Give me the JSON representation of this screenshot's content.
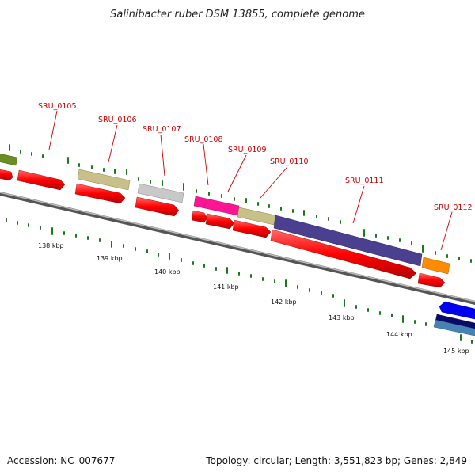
{
  "title": "Salinibacter ruber DSM 13855, complete genome",
  "footer": {
    "accession": "Accession: NC_007677",
    "topology": "Topology: circular; Length: 3,551,823 bp; Genes: 2,849"
  },
  "colors": {
    "cds": "#ff0000",
    "backbone": "#888888",
    "gc_tick": "#1a7a1a",
    "label": "#cc0000"
  },
  "kbp_labels": [
    "138 kbp",
    "139 kbp",
    "140 kbp",
    "141 kbp",
    "142 kbp",
    "143 kbp",
    "144 kbp",
    "145 kbp"
  ],
  "genes": [
    {
      "name": "SRU_0105",
      "color": "#c8c088"
    },
    {
      "name": "SRU_0106",
      "color": "#c8c088"
    },
    {
      "name": "SRU_0107",
      "color": "#c0c0c0"
    },
    {
      "name": "SRU_0108",
      "color": "#ff1493"
    },
    {
      "name": "SRU_0109",
      "color": "#c8c088"
    },
    {
      "name": "SRU_0110",
      "color": "#4b3f8f"
    },
    {
      "name": "SRU_0111",
      "color": "#4b3f8f"
    },
    {
      "name": "SRU_0112",
      "color": "#ff8c00"
    }
  ]
}
